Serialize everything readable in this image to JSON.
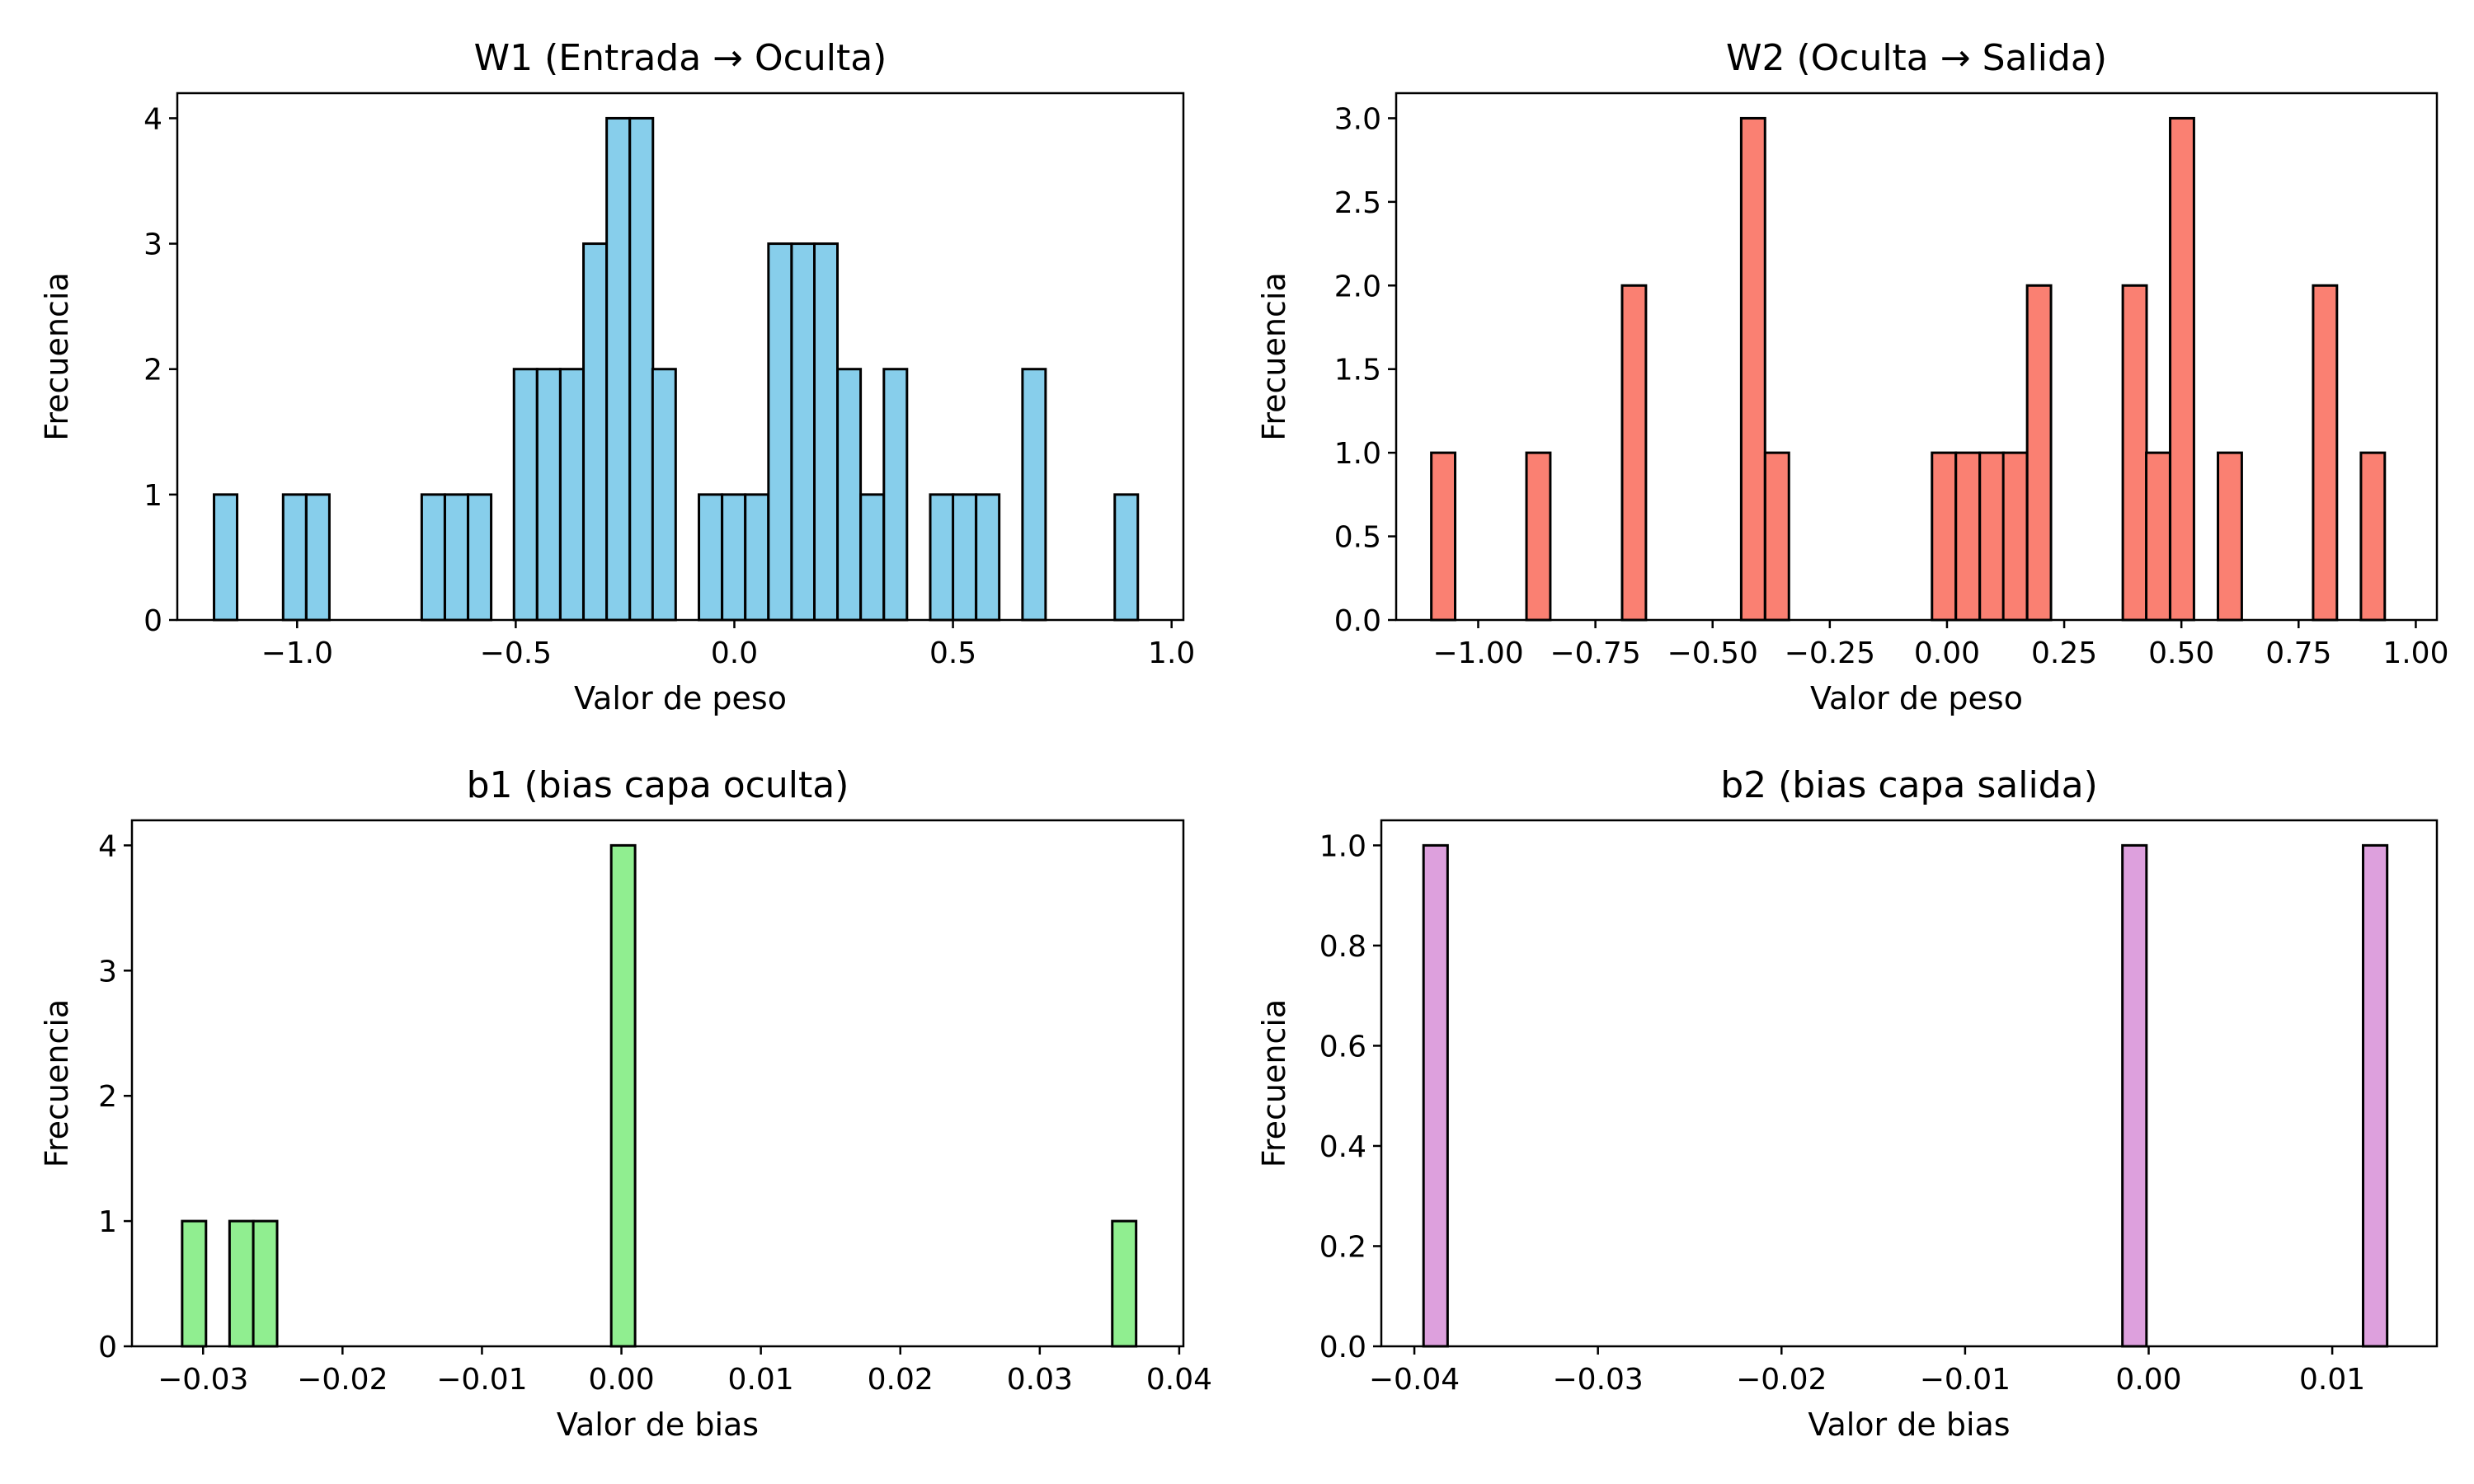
{
  "figure": {
    "background": "#ffffff"
  },
  "chart_data": [
    {
      "type": "bar",
      "subtype": "histogram",
      "title": "W1 (Entrada → Oculta)",
      "xlabel": "Valor de peso",
      "ylabel": "Frecuencia",
      "color": "#87ceeb",
      "edgecolor": "#000000",
      "xlim": [
        -1.274,
        1.027
      ],
      "ylim": [
        0,
        4.2
      ],
      "bin_width": 0.0528,
      "bins": [
        {
          "x": -1.19,
          "y": 1
        },
        {
          "x": -1.032,
          "y": 1
        },
        {
          "x": -0.979,
          "y": 1
        },
        {
          "x": -0.715,
          "y": 1
        },
        {
          "x": -0.662,
          "y": 1
        },
        {
          "x": -0.609,
          "y": 1
        },
        {
          "x": -0.504,
          "y": 2
        },
        {
          "x": -0.451,
          "y": 2
        },
        {
          "x": -0.398,
          "y": 2
        },
        {
          "x": -0.345,
          "y": 3
        },
        {
          "x": -0.292,
          "y": 4
        },
        {
          "x": -0.239,
          "y": 4
        },
        {
          "x": -0.187,
          "y": 2
        },
        {
          "x": -0.081,
          "y": 1
        },
        {
          "x": -0.028,
          "y": 1
        },
        {
          "x": 0.025,
          "y": 1
        },
        {
          "x": 0.078,
          "y": 3
        },
        {
          "x": 0.131,
          "y": 3
        },
        {
          "x": 0.183,
          "y": 3
        },
        {
          "x": 0.236,
          "y": 2
        },
        {
          "x": 0.289,
          "y": 1
        },
        {
          "x": 0.342,
          "y": 2
        },
        {
          "x": 0.448,
          "y": 1
        },
        {
          "x": 0.5,
          "y": 1
        },
        {
          "x": 0.553,
          "y": 1
        },
        {
          "x": 0.659,
          "y": 2
        },
        {
          "x": 0.87,
          "y": 1
        }
      ],
      "xticks": [
        -1.0,
        -0.5,
        0.0,
        0.5,
        1.0
      ],
      "xtick_labels": [
        "−1.0",
        "−0.5",
        "0.0",
        "0.5",
        "1.0"
      ],
      "yticks": [
        0,
        1,
        2,
        3,
        4
      ],
      "ytick_labels": [
        "0",
        "1",
        "2",
        "3",
        "4"
      ]
    },
    {
      "type": "bar",
      "subtype": "histogram",
      "title": "W2 (Oculta → Salida)",
      "xlabel": "Valor de peso",
      "ylabel": "Frecuencia",
      "color": "#fa8072",
      "edgecolor": "#000000",
      "xlim": [
        -1.175,
        1.045
      ],
      "ylim": [
        0,
        3.15
      ],
      "bin_width": 0.0508,
      "bins": [
        {
          "x": -1.1,
          "y": 1
        },
        {
          "x": -0.897,
          "y": 1
        },
        {
          "x": -0.693,
          "y": 2
        },
        {
          "x": -0.439,
          "y": 3
        },
        {
          "x": -0.388,
          "y": 1
        },
        {
          "x": -0.032,
          "y": 1
        },
        {
          "x": 0.019,
          "y": 1
        },
        {
          "x": 0.07,
          "y": 1
        },
        {
          "x": 0.12,
          "y": 1
        },
        {
          "x": 0.171,
          "y": 2
        },
        {
          "x": 0.375,
          "y": 2
        },
        {
          "x": 0.425,
          "y": 1
        },
        {
          "x": 0.476,
          "y": 3
        },
        {
          "x": 0.578,
          "y": 1
        },
        {
          "x": 0.781,
          "y": 2
        },
        {
          "x": 0.883,
          "y": 1
        }
      ],
      "xticks": [
        -1.0,
        -0.75,
        -0.5,
        -0.25,
        0.0,
        0.25,
        0.5,
        0.75,
        1.0
      ],
      "xtick_labels": [
        "−1.00",
        "−0.75",
        "−0.50",
        "−0.25",
        "0.00",
        "0.25",
        "0.50",
        "0.75",
        "1.00"
      ],
      "yticks": [
        0,
        0.5,
        1.0,
        1.5,
        2.0,
        2.5,
        3.0
      ],
      "ytick_labels": [
        "0.0",
        "0.5",
        "1.0",
        "1.5",
        "2.0",
        "2.5",
        "3.0"
      ]
    },
    {
      "type": "bar",
      "subtype": "histogram",
      "title": "b1 (bias capa oculta)",
      "xlabel": "Valor de bias",
      "ylabel": "Frecuencia",
      "color": "#90ee90",
      "edgecolor": "#000000",
      "xlim": [
        -0.0351,
        0.0403
      ],
      "ylim": [
        0,
        4.2
      ],
      "bin_width": 0.00171,
      "bins": [
        {
          "x": -0.0315,
          "y": 1
        },
        {
          "x": -0.0281,
          "y": 1
        },
        {
          "x": -0.0264,
          "y": 1
        },
        {
          "x": -0.00073,
          "y": 4
        },
        {
          "x": 0.0352,
          "y": 1
        }
      ],
      "xticks": [
        -0.03,
        -0.02,
        -0.01,
        0.0,
        0.01,
        0.02,
        0.03,
        0.04
      ],
      "xtick_labels": [
        "−0.03",
        "−0.02",
        "−0.01",
        "0.00",
        "0.01",
        "0.02",
        "0.03",
        "0.04"
      ],
      "yticks": [
        0,
        1,
        2,
        3,
        4
      ],
      "ytick_labels": [
        "0",
        "1",
        "2",
        "3",
        "4"
      ]
    },
    {
      "type": "bar",
      "subtype": "histogram",
      "title": "b2 (bias capa salida)",
      "xlabel": "Valor de bias",
      "ylabel": "Frecuencia",
      "color": "#dda0dd",
      "edgecolor": "#000000",
      "xlim": [
        -0.0418,
        0.0157
      ],
      "ylim": [
        0,
        1.05
      ],
      "bin_width": 0.00131,
      "bins": [
        {
          "x": -0.0395,
          "y": 1
        },
        {
          "x": -0.00143,
          "y": 1
        },
        {
          "x": 0.01168,
          "y": 1
        }
      ],
      "xticks": [
        -0.04,
        -0.03,
        -0.02,
        -0.01,
        0.0,
        0.01
      ],
      "xtick_labels": [
        "−0.04",
        "−0.03",
        "−0.02",
        "−0.01",
        "0.00",
        "0.01"
      ],
      "yticks": [
        0,
        0.2,
        0.4,
        0.6,
        0.8,
        1.0
      ],
      "ytick_labels": [
        "0.0",
        "0.2",
        "0.4",
        "0.6",
        "0.8",
        "1.0"
      ]
    }
  ]
}
